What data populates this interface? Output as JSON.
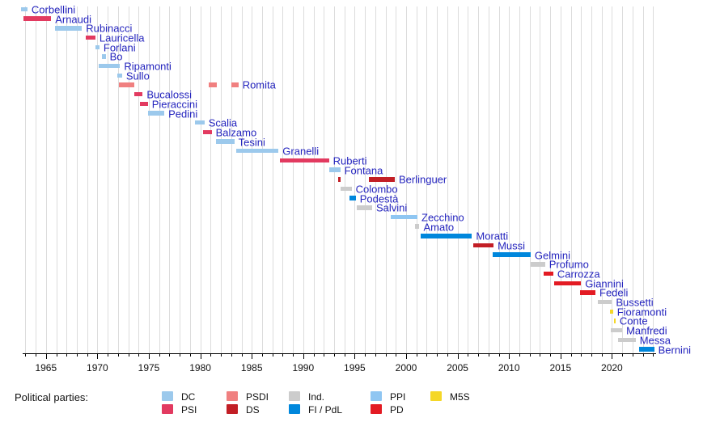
{
  "legend": {
    "label": "Political parties:",
    "items": [
      {
        "party": "DC"
      },
      {
        "party": "PSI"
      },
      {
        "party": "PSDI"
      },
      {
        "party": "DS"
      },
      {
        "party": "Ind."
      },
      {
        "party": "FI / PdL"
      },
      {
        "party": "PPI"
      },
      {
        "party": "PD"
      },
      {
        "party": "M5S"
      }
    ]
  },
  "chart_data": {
    "type": "timeline",
    "title": "",
    "xlabel": "",
    "ylabel": "",
    "axis": {
      "min_year": 1962.5,
      "max_year": 2025,
      "minor_tick_start": 1963,
      "minor_tick_end": 2024,
      "labeled_ticks": [
        1965,
        1970,
        1975,
        1980,
        1985,
        1990,
        1995,
        2000,
        2005,
        2010,
        2015,
        2020
      ],
      "grid": true
    },
    "colors": {
      "label_color": "#2424be",
      "parties": {
        "DC": "#9cc9ec",
        "PSI": "#e23a60",
        "PSDI": "#f08080",
        "DS": "#c21e25",
        "Ind.": "#cccccc",
        "FI / PdL": "#0087dc",
        "PPI": "#8fc6f2",
        "PD": "#e31b23",
        "M5S": "#f5d728"
      }
    },
    "ministers": [
      {
        "name": "Corbellini",
        "party": "DC",
        "terms": [
          [
            1962.6,
            1963.2
          ]
        ]
      },
      {
        "name": "Arnaudi",
        "party": "PSI",
        "terms": [
          [
            1962.8,
            1965.5
          ]
        ]
      },
      {
        "name": "Rubinacci",
        "party": "DC",
        "terms": [
          [
            1965.9,
            1968.5
          ]
        ]
      },
      {
        "name": "Lauricella",
        "party": "PSI",
        "terms": [
          [
            1968.9,
            1969.8
          ]
        ]
      },
      {
        "name": "Forlani",
        "party": "DC",
        "terms": [
          [
            1969.8,
            1970.2
          ]
        ]
      },
      {
        "name": "Bo",
        "party": "DC",
        "terms": [
          [
            1970.4,
            1970.8
          ]
        ]
      },
      {
        "name": "Ripamonti",
        "party": "DC",
        "terms": [
          [
            1970.1,
            1972.2
          ]
        ]
      },
      {
        "name": "Sullo",
        "party": "DC",
        "terms": [
          [
            1971.9,
            1972.4
          ]
        ]
      },
      {
        "name": "Romita",
        "party": "PSDI",
        "terms": [
          [
            1972.1,
            1973.6
          ],
          [
            1980.8,
            1981.6
          ],
          [
            1983.0,
            1983.7
          ]
        ]
      },
      {
        "name": "Bucalossi",
        "party": "PSI",
        "terms": [
          [
            1973.6,
            1974.4
          ]
        ]
      },
      {
        "name": "Pieraccini",
        "party": "PSI",
        "terms": [
          [
            1974.1,
            1974.9
          ]
        ]
      },
      {
        "name": "Pedini",
        "party": "DC",
        "terms": [
          [
            1974.9,
            1976.5
          ]
        ]
      },
      {
        "name": "Scalia",
        "party": "DC",
        "terms": [
          [
            1979.5,
            1980.4
          ]
        ]
      },
      {
        "name": "Balzamo",
        "party": "PSI",
        "terms": [
          [
            1980.3,
            1981.1
          ]
        ]
      },
      {
        "name": "Tesini",
        "party": "DC",
        "terms": [
          [
            1981.5,
            1983.3
          ]
        ]
      },
      {
        "name": "Granelli",
        "party": "DC",
        "terms": [
          [
            1983.5,
            1987.6
          ]
        ]
      },
      {
        "name": "Ruberti",
        "party": "PSI",
        "terms": [
          [
            1987.7,
            1992.5
          ]
        ]
      },
      {
        "name": "Fontana",
        "party": "DC",
        "terms": [
          [
            1992.5,
            1993.6
          ]
        ]
      },
      {
        "name": "Berlinguer",
        "party": "DS",
        "terms": [
          [
            1993.4,
            1993.6
          ],
          [
            1996.4,
            1998.9
          ]
        ]
      },
      {
        "name": "Colombo",
        "party": "Ind.",
        "terms": [
          [
            1993.6,
            1994.7
          ]
        ]
      },
      {
        "name": "Podestà",
        "party": "FI / PdL",
        "terms": [
          [
            1994.5,
            1995.1
          ]
        ]
      },
      {
        "name": "Salvini",
        "party": "Ind.",
        "terms": [
          [
            1995.2,
            1996.7
          ]
        ]
      },
      {
        "name": "Zecchino",
        "party": "PPI",
        "terms": [
          [
            1998.5,
            2001.1
          ]
        ]
      },
      {
        "name": "Amato",
        "party": "Ind.",
        "terms": [
          [
            2000.9,
            2001.3
          ]
        ]
      },
      {
        "name": "Moratti",
        "party": "FI / PdL",
        "terms": [
          [
            2001.4,
            2006.4
          ]
        ]
      },
      {
        "name": "Mussi",
        "party": "DS",
        "terms": [
          [
            2006.5,
            2008.5
          ]
        ]
      },
      {
        "name": "Gelmini",
        "party": "FI / PdL",
        "terms": [
          [
            2008.4,
            2012.1
          ]
        ]
      },
      {
        "name": "Profumo",
        "party": "Ind.",
        "terms": [
          [
            2012.1,
            2013.5
          ]
        ]
      },
      {
        "name": "Carrozza",
        "party": "PD",
        "terms": [
          [
            2013.4,
            2014.3
          ]
        ]
      },
      {
        "name": "Giannini",
        "party": "PD",
        "terms": [
          [
            2014.4,
            2017.0
          ]
        ]
      },
      {
        "name": "Fedeli",
        "party": "PD",
        "terms": [
          [
            2016.9,
            2018.4
          ]
        ]
      },
      {
        "name": "Bussetti",
        "party": "Ind.",
        "terms": [
          [
            2018.6,
            2020.0
          ]
        ]
      },
      {
        "name": "Fioramonti",
        "party": "M5S",
        "terms": [
          [
            2019.8,
            2020.1
          ]
        ]
      },
      {
        "name": "Conte",
        "party": "M5S",
        "terms": [
          [
            2020.2,
            2020.35
          ]
        ]
      },
      {
        "name": "Manfredi",
        "party": "Ind.",
        "terms": [
          [
            2019.9,
            2021.0
          ]
        ]
      },
      {
        "name": "Messa",
        "party": "Ind.",
        "terms": [
          [
            2020.6,
            2022.3
          ]
        ]
      },
      {
        "name": "Bernini",
        "party": "FI / PdL",
        "terms": [
          [
            2022.6,
            2024.1
          ]
        ]
      }
    ]
  }
}
